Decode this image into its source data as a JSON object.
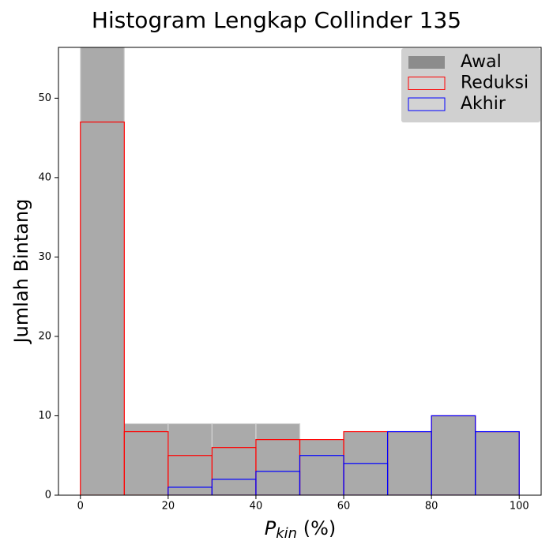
{
  "chart_data": {
    "type": "histogram",
    "title": "Histogram Lengkap Collinder 135",
    "xlabel": {
      "main": "P",
      "subscript": "kin",
      "suffix": " (%)"
    },
    "ylabel": "Jumlah Bintang",
    "bins": [
      0,
      10,
      20,
      30,
      40,
      50,
      60,
      70,
      80,
      90,
      100
    ],
    "series": [
      {
        "name": "Awal",
        "color": "#aaaaaa",
        "edge": "#d3d3d3",
        "filled": true,
        "values": [
          60,
          9,
          9,
          9,
          9,
          7,
          8,
          8,
          10,
          8
        ]
      },
      {
        "name": "Reduksi",
        "color": "#ff0000",
        "filled": false,
        "values": [
          47,
          8,
          5,
          6,
          7,
          7,
          8,
          8,
          10,
          8
        ]
      },
      {
        "name": "Akhir",
        "color": "#0000ff",
        "filled": false,
        "values": [
          0,
          0,
          1,
          2,
          3,
          5,
          4,
          8,
          10,
          8
        ]
      }
    ],
    "xlim": [
      -5,
      105
    ],
    "xticks": [
      0,
      20,
      40,
      60,
      80,
      100
    ],
    "ylim": [
      0,
      56.4
    ],
    "yticks": [
      0,
      10,
      20,
      30,
      40,
      50
    ],
    "legend": "upper right"
  }
}
